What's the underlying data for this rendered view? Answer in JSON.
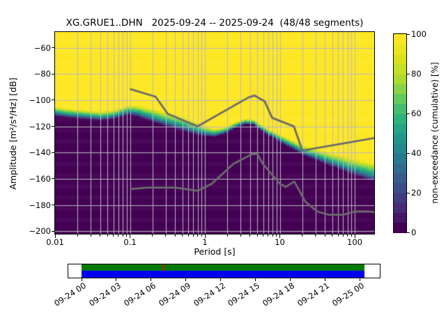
{
  "title": "XG.GRUE1..DHN   2025-09-24 -- 2025-09-24  (48/48 segments)",
  "axes": {
    "xlabel": "Period [s]",
    "ylabel": "Amplitude [m²/s⁴/Hz] [dB]",
    "x_tick_labels": [
      "0.01",
      "0.1",
      "1",
      "10",
      "100"
    ],
    "x_tick_values": [
      0.01,
      0.1,
      1,
      10,
      100
    ],
    "y_tick_labels": [
      "−60",
      "−80",
      "−100",
      "−120",
      "−140",
      "−160",
      "−180",
      "−200"
    ],
    "y_tick_values": [
      -60,
      -80,
      -100,
      -120,
      -140,
      -160,
      -180,
      -200
    ],
    "x_range_s": [
      0.01,
      182
    ],
    "y_range_db": [
      -202,
      -48
    ],
    "grid": true
  },
  "colorbar": {
    "label": "non-exceedance (cumulative) [%]",
    "tick_labels": [
      "0",
      "20",
      "40",
      "60",
      "80",
      "100"
    ],
    "tick_values": [
      0,
      20,
      40,
      60,
      80,
      100
    ],
    "range": [
      0,
      100
    ],
    "levels": 20
  },
  "chart_data": {
    "type": "heatmap",
    "title": "XG.GRUE1..DHN   2025-09-24 -- 2025-09-24  (48/48 segments)",
    "xlabel": "Period [s]",
    "ylabel": "Amplitude [m²/s⁴/Hz] [dB]",
    "zlabel": "non-exceedance (cumulative) [%]",
    "x_scale": "log",
    "xlim": [
      0.01,
      182
    ],
    "ylim": [
      -202,
      -48
    ],
    "zlim": [
      0,
      100
    ],
    "legend_position": "right-colorbar",
    "cdf50_boundary": {
      "comment": "median PSD level in dB vs period in s; color is ~0% below, ~100% above",
      "periods_s": [
        0.01,
        0.016,
        0.025,
        0.04,
        0.06,
        0.08,
        0.095,
        0.13,
        0.2,
        0.3,
        0.45,
        0.65,
        0.9,
        1.3,
        1.8,
        2.6,
        3.5,
        4.5,
        6,
        8,
        10,
        15,
        20,
        28,
        40,
        60,
        90,
        130,
        182
      ],
      "db": [
        -109,
        -110.5,
        -111.5,
        -112.5,
        -111.5,
        -109.5,
        -108,
        -109,
        -112.5,
        -115.5,
        -118,
        -121,
        -123.5,
        -125.5,
        -123.5,
        -119,
        -116.5,
        -117,
        -122,
        -126.5,
        -129.5,
        -134.5,
        -138.5,
        -141.5,
        -144.5,
        -148,
        -151.5,
        -154,
        -156.5
      ]
    },
    "half_width_db": {
      "periods_s": [
        0.01,
        0.03,
        0.06,
        0.1,
        0.2,
        0.4,
        0.7,
        1.2,
        2,
        4,
        7,
        12,
        25,
        50,
        100,
        182
      ],
      "db": [
        3.2,
        3,
        3,
        3.5,
        4.5,
        5,
        4.5,
        3,
        2.2,
        1.8,
        2.2,
        2.8,
        3.5,
        4.5,
        5.5,
        6.5
      ]
    },
    "noise_models": {
      "color": "#6b6b6b",
      "nhnm": [
        [
          0.1,
          -91.5
        ],
        [
          0.22,
          -97.4
        ],
        [
          0.32,
          -110.5
        ],
        [
          0.8,
          -120.0
        ],
        [
          3.8,
          -98.0
        ],
        [
          4.6,
          -96.5
        ],
        [
          6.3,
          -101.0
        ],
        [
          7.9,
          -113.5
        ],
        [
          15.4,
          -120.0
        ],
        [
          20.0,
          -138.5
        ],
        [
          354.8,
          -126.0
        ]
      ],
      "nlnm": [
        [
          0.1,
          -168.0
        ],
        [
          0.17,
          -166.7
        ],
        [
          0.4,
          -166.7
        ],
        [
          0.8,
          -169.2
        ],
        [
          1.24,
          -163.7
        ],
        [
          2.4,
          -148.6
        ],
        [
          4.3,
          -141.1
        ],
        [
          5.0,
          -141.1
        ],
        [
          6.0,
          -149.0
        ],
        [
          10.0,
          -163.8
        ],
        [
          12.0,
          -166.2
        ],
        [
          15.6,
          -162.1
        ],
        [
          21.9,
          -177.5
        ],
        [
          31.6,
          -185.0
        ],
        [
          45.0,
          -187.5
        ],
        [
          70.0,
          -187.5
        ],
        [
          101.0,
          -185.0
        ],
        [
          154.0,
          -185.0
        ],
        [
          328.0,
          -187.5
        ]
      ]
    },
    "colormap": {
      "name": "viridis",
      "stops": [
        [
          0.0,
          "#440154"
        ],
        [
          0.1,
          "#482878"
        ],
        [
          0.2,
          "#3e4989"
        ],
        [
          0.3,
          "#31688e"
        ],
        [
          0.4,
          "#26828e"
        ],
        [
          0.5,
          "#1f9e89"
        ],
        [
          0.6,
          "#35b779"
        ],
        [
          0.7,
          "#6dcd59"
        ],
        [
          0.8,
          "#b4de2c"
        ],
        [
          0.9,
          "#dce319"
        ],
        [
          1.0,
          "#fde725"
        ]
      ]
    },
    "grid_color": "#b9b9c0"
  },
  "timeline": {
    "tick_labels": [
      "09-24 00",
      "09-24 03",
      "09-24 06",
      "09-24 09",
      "09-24 12",
      "09-24 15",
      "09-24 18",
      "09-24 21",
      "09-25 00"
    ],
    "coverage_color": "#007a00",
    "segment_color": "#0000f0",
    "gap_color": "#e80000",
    "gap_marker_fraction": 0.2875
  }
}
